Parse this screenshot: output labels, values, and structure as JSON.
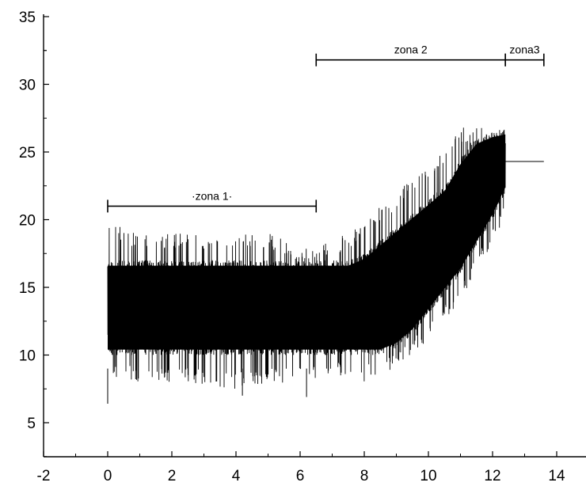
{
  "chart_data": {
    "type": "line",
    "title": "",
    "xlabel": "",
    "ylabel": "",
    "xlim": [
      -2,
      15
    ],
    "ylim": [
      2.5,
      35
    ],
    "x_ticks": [
      -2,
      0,
      2,
      4,
      6,
      8,
      10,
      12,
      14
    ],
    "y_ticks": [
      5,
      10,
      15,
      20,
      25,
      30,
      35
    ],
    "x_tick_labels": [
      "-2",
      "0",
      "2",
      "4",
      "6",
      "8",
      "10",
      "12",
      "14"
    ],
    "y_tick_labels": [
      "5",
      "10",
      "15",
      "20",
      "25",
      "30",
      "35"
    ],
    "grid": false,
    "legend": "none",
    "series_color": "#000000",
    "envelope": {
      "x": [
        0,
        1,
        2,
        3,
        4,
        5,
        6,
        6.5,
        7,
        7.5,
        8,
        8.5,
        9,
        9.5,
        10,
        10.5,
        11,
        11.5,
        12,
        12.4
      ],
      "dense_low": [
        10,
        10,
        10,
        10,
        10,
        10,
        10,
        10,
        10,
        10,
        10,
        10,
        10.5,
        11.5,
        13,
        14.5,
        16,
        18,
        20,
        22
      ],
      "dense_high": [
        17,
        17,
        17,
        17,
        17,
        17,
        17,
        17,
        17,
        17,
        17.5,
        18.5,
        19.5,
        20.5,
        21.5,
        22.5,
        24.5,
        26,
        26.5,
        26.7
      ],
      "spike_low": [
        8,
        8,
        8,
        7.8,
        7.5,
        7.8,
        8,
        8,
        8.2,
        8.5,
        8,
        8.5,
        9,
        10,
        11,
        12.5,
        14,
        16,
        18,
        20
      ],
      "spike_high": [
        20,
        19,
        19,
        19,
        19,
        19,
        18,
        18,
        18.5,
        19,
        20,
        21,
        22,
        23,
        24,
        25,
        26.8,
        26.8,
        26.8,
        26.8
      ]
    },
    "outliers": [
      {
        "x": 0.0,
        "y": 6.4
      },
      {
        "x": 4.2,
        "y": 7.0
      },
      {
        "x": 6.2,
        "y": 6.9
      }
    ],
    "tail": {
      "x_start": 12.4,
      "x_end": 13.6,
      "y": 24.3
    },
    "annotations": [
      {
        "label": "·zona 1·",
        "x_start": 0,
        "x_end": 6.5,
        "y": 21
      },
      {
        "label": "zona 2",
        "x_start": 6.5,
        "x_end": 12.4,
        "y": 31.8
      },
      {
        "label": "zona3",
        "x_start": 12.4,
        "x_end": 13.6,
        "y": 31.8
      }
    ]
  }
}
